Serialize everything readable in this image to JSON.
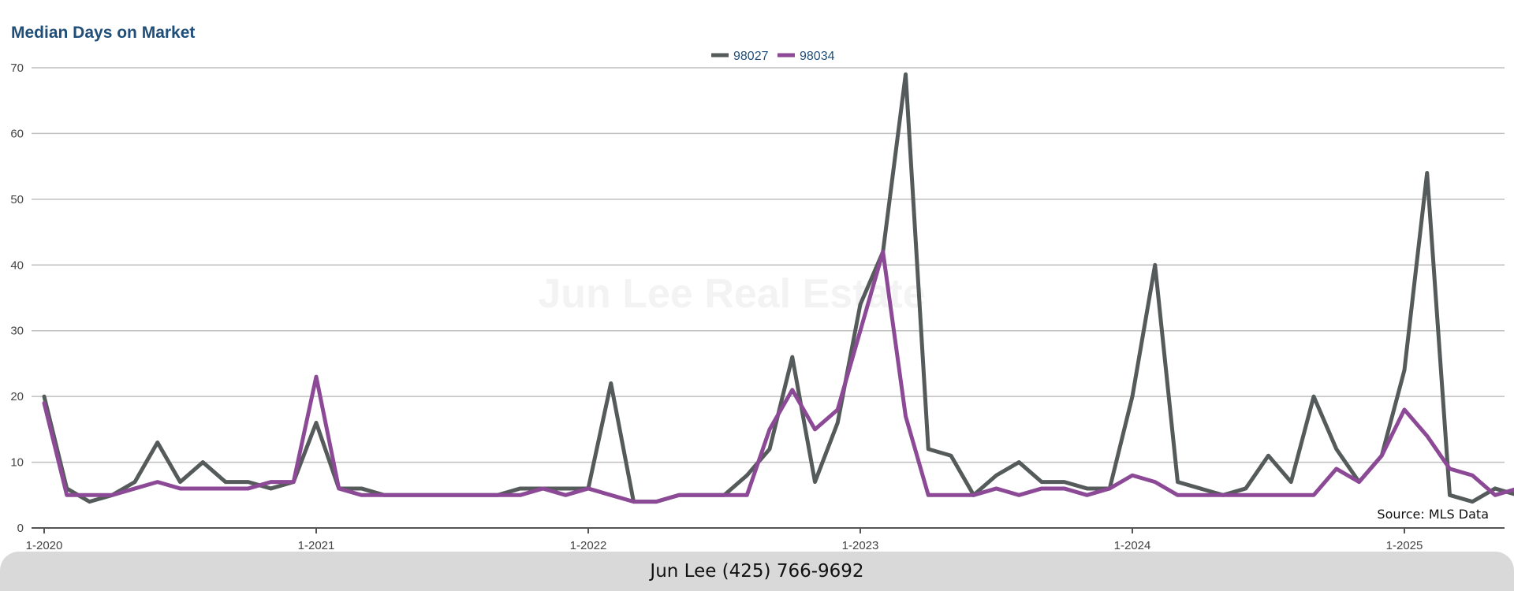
{
  "footer": {
    "contact": "Jun Lee (425) 766-9692"
  },
  "watermark": "Jun Lee Real Estate",
  "source_note": "Source: MLS Data",
  "chart_data": {
    "type": "line",
    "title": "Median Days on Market",
    "xlabel": "",
    "ylabel": "",
    "ylim": [
      0,
      70
    ],
    "yticks": [
      0,
      10,
      20,
      30,
      40,
      50,
      60,
      70
    ],
    "xtick_labels": [
      "1-2020",
      "1-2021",
      "1-2022",
      "1-2023",
      "1-2024",
      "1-2025"
    ],
    "x_start": "1-2020",
    "x_interval": "month",
    "grid": true,
    "legend_position": "top-center",
    "series": [
      {
        "name": "98027",
        "color": "#555a5a",
        "values": [
          20,
          6,
          4,
          5,
          7,
          13,
          7,
          10,
          7,
          7,
          6,
          7,
          16,
          6,
          6,
          5,
          5,
          5,
          5,
          5,
          5,
          6,
          6,
          6,
          6,
          22,
          4,
          4,
          5,
          5,
          5,
          8,
          12,
          26,
          7,
          16,
          34,
          42,
          69,
          12,
          11,
          5,
          8,
          10,
          7,
          7,
          6,
          6,
          20,
          40,
          7,
          6,
          5,
          6,
          11,
          7,
          20,
          12,
          7,
          11,
          24,
          54,
          5,
          4,
          6,
          5
        ]
      },
      {
        "name": "98034",
        "color": "#8c4a96",
        "values": [
          19,
          5,
          5,
          5,
          6,
          7,
          6,
          6,
          6,
          6,
          7,
          7,
          23,
          6,
          5,
          5,
          5,
          5,
          5,
          5,
          5,
          5,
          6,
          5,
          6,
          5,
          4,
          4,
          5,
          5,
          5,
          5,
          15,
          21,
          15,
          18,
          30,
          42,
          17,
          5,
          5,
          5,
          6,
          5,
          6,
          6,
          5,
          6,
          8,
          7,
          5,
          5,
          5,
          5,
          5,
          5,
          5,
          9,
          7,
          11,
          18,
          14,
          9,
          8,
          5,
          6
        ]
      }
    ]
  }
}
